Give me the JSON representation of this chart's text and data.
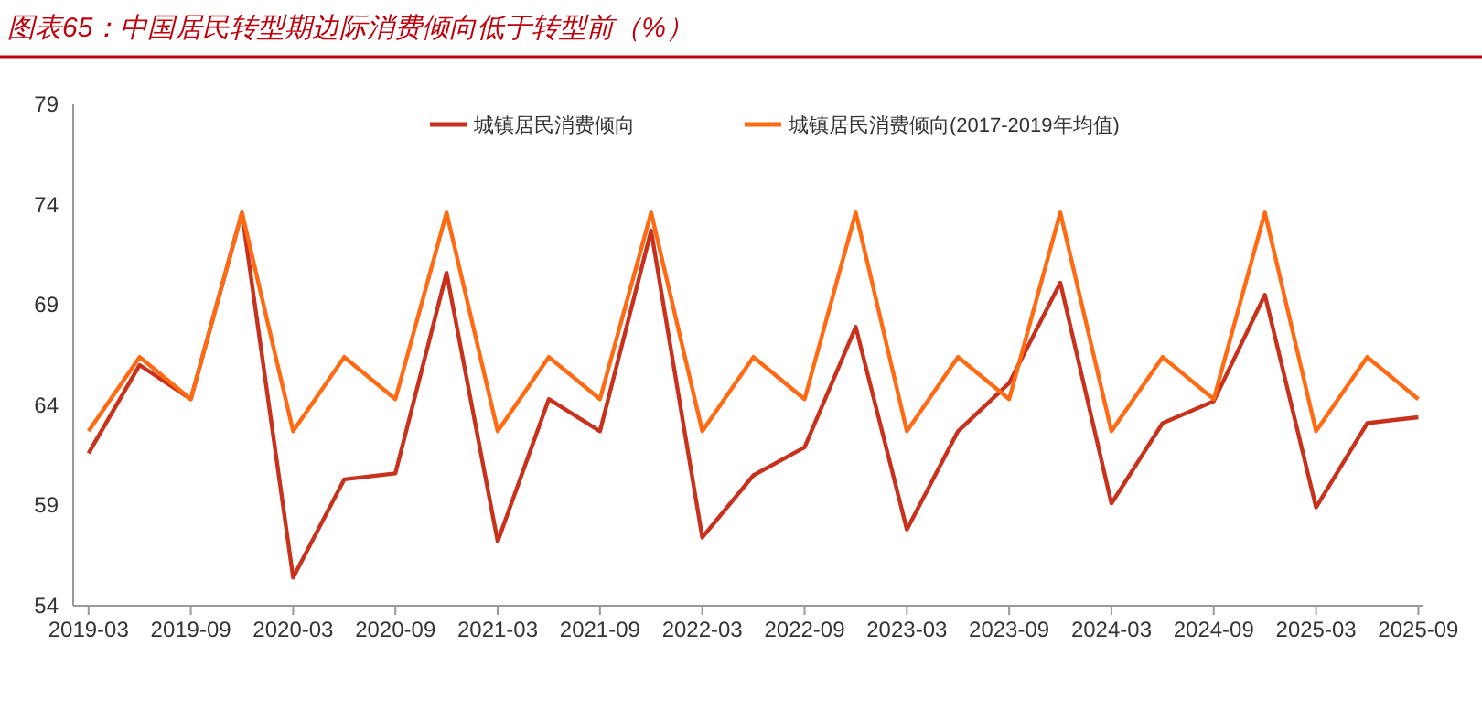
{
  "chart_data": {
    "type": "line",
    "title": "图表65：中国居民转型期边际消费倾向低于转型前（%）",
    "categories": [
      "2019-03",
      null,
      "2019-09",
      null,
      "2020-03",
      null,
      "2020-09",
      null,
      "2021-03",
      null,
      "2021-09",
      null,
      "2022-03",
      null,
      "2022-09",
      null,
      "2023-03",
      null,
      "2023-09",
      null,
      "2024-03",
      null,
      "2024-09",
      null,
      "2025-03",
      null,
      "2025-09"
    ],
    "series": [
      {
        "name": "城镇居民消费倾向",
        "color": "#c8321c",
        "values": [
          61.6,
          66.0,
          64.3,
          73.6,
          55.4,
          60.3,
          60.6,
          70.6,
          57.2,
          64.3,
          62.7,
          72.7,
          57.4,
          60.5,
          61.9,
          67.9,
          57.8,
          62.7,
          65.1,
          70.1,
          59.1,
          63.1,
          64.2,
          69.5,
          58.9,
          63.1,
          63.4
        ]
      },
      {
        "name": "城镇居民消费倾向(2017-2019年均值)",
        "color": "#ff6a13",
        "values": [
          62.7,
          66.4,
          64.3,
          73.6,
          62.7,
          66.4,
          64.3,
          73.6,
          62.7,
          66.4,
          64.3,
          73.6,
          62.7,
          66.4,
          64.3,
          73.6,
          62.7,
          66.4,
          64.3,
          73.6,
          62.7,
          66.4,
          64.3,
          73.6,
          62.7,
          66.4,
          64.3
        ]
      }
    ],
    "ylim": [
      54,
      79
    ],
    "yticks": [
      54,
      59,
      64,
      69,
      74,
      79
    ],
    "grid": false,
    "legend": "top",
    "line_style": "solid",
    "marker": "none"
  }
}
